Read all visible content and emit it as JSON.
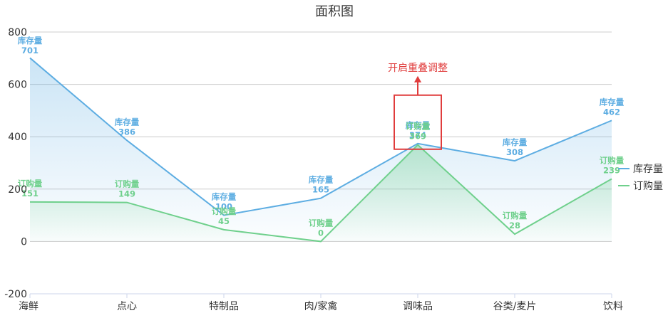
{
  "chart_data": {
    "type": "area",
    "title": "面积图",
    "categories": [
      "海鲜",
      "点心",
      "特制品",
      "肉/家禽",
      "调味品",
      "谷类/麦片",
      "饮料"
    ],
    "series": [
      {
        "name": "库存量",
        "values": [
          701,
          386,
          100,
          165,
          374,
          308,
          462
        ],
        "color": "#5dade2"
      },
      {
        "name": "订购量",
        "values": [
          151,
          149,
          45,
          0,
          369,
          28,
          239
        ],
        "color": "#6fd08c"
      }
    ],
    "ylim": [
      -200,
      800
    ],
    "yticks": [
      -200,
      0,
      200,
      400,
      600,
      800
    ],
    "grid": true,
    "legend": "right",
    "annotation": {
      "text": "开启重叠调整",
      "color": "#e03c3c",
      "target_category": "调味品"
    }
  }
}
